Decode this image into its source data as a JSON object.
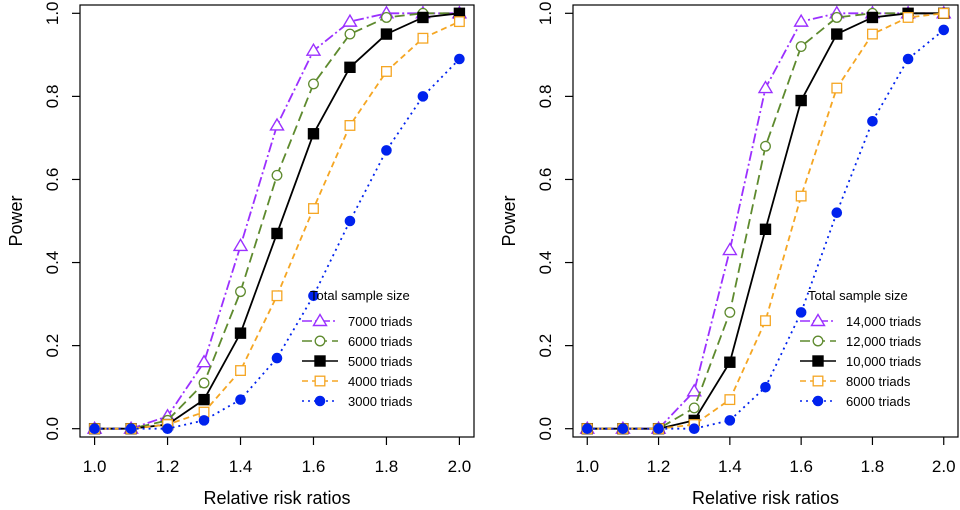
{
  "chart_data": [
    {
      "type": "line",
      "xlabel": "Relative risk ratios",
      "ylabel": "Power",
      "xlim": [
        0.96,
        2.04
      ],
      "ylim": [
        -0.02,
        1.02
      ],
      "xticks": [
        "1.0",
        "1.2",
        "1.4",
        "1.6",
        "1.8",
        "2.0"
      ],
      "yticks": [
        "0.0",
        "0.2",
        "0.4",
        "0.6",
        "0.8",
        "1.0"
      ],
      "grid": false,
      "legend": {
        "title": "Total sample size",
        "position": "bottom-right"
      },
      "x": [
        1.0,
        1.1,
        1.2,
        1.3,
        1.4,
        1.5,
        1.6,
        1.7,
        1.8,
        1.9,
        2.0
      ],
      "series": [
        {
          "name": "7000 triads",
          "color": "#9b30ff",
          "marker": "triangle-open",
          "dash": "10,3,2,3",
          "values": [
            0,
            0,
            0.03,
            0.16,
            0.44,
            0.73,
            0.91,
            0.98,
            1.0,
            1.0,
            1.0
          ]
        },
        {
          "name": "6000 triads",
          "color": "#5e8a2e",
          "marker": "circle-open",
          "dash": "10,5",
          "values": [
            0,
            0,
            0.02,
            0.11,
            0.33,
            0.61,
            0.83,
            0.95,
            0.99,
            1.0,
            1.0
          ]
        },
        {
          "name": "5000 triads",
          "color": "#000000",
          "marker": "square-filled",
          "dash": "",
          "values": [
            0,
            0,
            0.01,
            0.07,
            0.23,
            0.47,
            0.71,
            0.87,
            0.95,
            0.99,
            1.0
          ]
        },
        {
          "name": "4000 triads",
          "color": "#f5a623",
          "marker": "square-open",
          "dash": "6,4",
          "values": [
            0,
            0,
            0.01,
            0.04,
            0.14,
            0.32,
            0.53,
            0.73,
            0.86,
            0.94,
            0.98
          ]
        },
        {
          "name": "3000 triads",
          "color": "#0022ee",
          "marker": "circle-filled",
          "dash": "2,4",
          "values": [
            0,
            0,
            0,
            0.02,
            0.07,
            0.17,
            0.32,
            0.5,
            0.67,
            0.8,
            0.89
          ]
        }
      ]
    },
    {
      "type": "line",
      "xlabel": "Relative risk ratios",
      "ylabel": "Power",
      "xlim": [
        0.96,
        2.04
      ],
      "ylim": [
        -0.02,
        1.02
      ],
      "xticks": [
        "1.0",
        "1.2",
        "1.4",
        "1.6",
        "1.8",
        "2.0"
      ],
      "yticks": [
        "0.0",
        "0.2",
        "0.4",
        "0.6",
        "0.8",
        "1.0"
      ],
      "grid": false,
      "legend": {
        "title": "Total sample size",
        "position": "bottom-right"
      },
      "x": [
        1.0,
        1.1,
        1.2,
        1.3,
        1.4,
        1.5,
        1.6,
        1.7,
        1.8,
        1.9,
        2.0
      ],
      "series": [
        {
          "name": "14,000 triads",
          "color": "#9b30ff",
          "marker": "triangle-open",
          "dash": "10,3,2,3",
          "values": [
            0,
            0,
            0,
            0.09,
            0.43,
            0.82,
            0.98,
            1.0,
            1.0,
            1.0,
            1.0
          ]
        },
        {
          "name": "12,000 triads",
          "color": "#5e8a2e",
          "marker": "circle-open",
          "dash": "10,5",
          "values": [
            0,
            0,
            0,
            0.05,
            0.28,
            0.68,
            0.92,
            0.99,
            1.0,
            1.0,
            1.0
          ]
        },
        {
          "name": "10,000 triads",
          "color": "#000000",
          "marker": "square-filled",
          "dash": "",
          "values": [
            0,
            0,
            0,
            0.02,
            0.16,
            0.48,
            0.79,
            0.95,
            0.99,
            1.0,
            1.0
          ]
        },
        {
          "name": "8000 triads",
          "color": "#f5a623",
          "marker": "square-open",
          "dash": "6,4",
          "values": [
            0,
            0,
            0,
            0.01,
            0.07,
            0.26,
            0.56,
            0.82,
            0.95,
            0.99,
            1.0
          ]
        },
        {
          "name": "6000 triads",
          "color": "#0022ee",
          "marker": "circle-filled",
          "dash": "2,4",
          "values": [
            0,
            0,
            0,
            0,
            0.02,
            0.1,
            0.28,
            0.52,
            0.74,
            0.89,
            0.96
          ]
        }
      ]
    }
  ]
}
